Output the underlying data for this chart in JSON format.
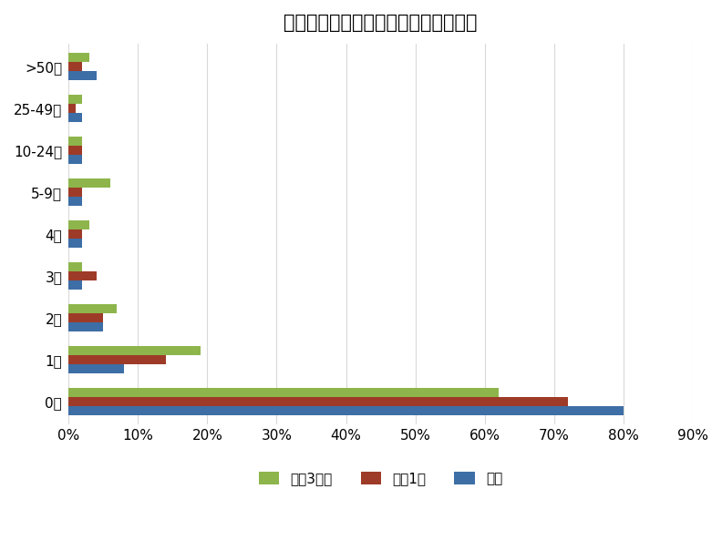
{
  "title": "即将建设的数据中心数量（企业占比）",
  "categories": [
    "0台",
    "1台",
    "2台",
    "3台",
    "4台",
    "5-9台",
    "10-24台",
    "25-49台",
    ">50台"
  ],
  "series": {
    "未来3年内": [
      62,
      19,
      7,
      2,
      3,
      6,
      2,
      2,
      3
    ],
    "未来1年": [
      72,
      14,
      5,
      4,
      2,
      2,
      2,
      1,
      2
    ],
    "目前": [
      80,
      8,
      5,
      2,
      2,
      2,
      2,
      2,
      4
    ]
  },
  "colors": {
    "未来3年内": "#8DB54B",
    "未来1年": "#9E3B28",
    "目前": "#3D6EA6"
  },
  "xlim": [
    0,
    90
  ],
  "xticks": [
    0,
    10,
    20,
    30,
    40,
    50,
    60,
    70,
    80,
    90
  ],
  "legend_order": [
    "未来3年内",
    "未来1年",
    "目前"
  ],
  "background_color": "#FFFFFF",
  "grid_color": "#D9D9D9",
  "title_fontsize": 15,
  "tick_fontsize": 11,
  "legend_fontsize": 11
}
